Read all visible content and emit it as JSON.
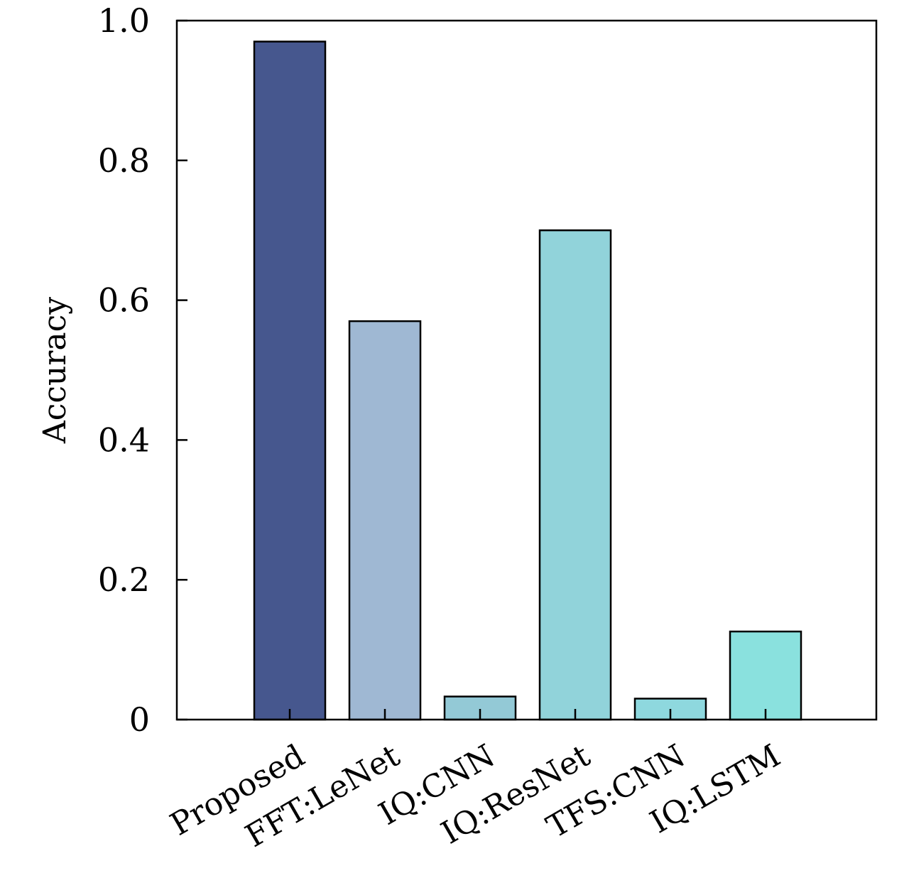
{
  "chart_data": {
    "type": "bar",
    "title": "",
    "xlabel": "",
    "ylabel": "Accuracy",
    "ylim": [
      0,
      1.0
    ],
    "yticks": [
      0,
      0.2,
      0.4,
      0.6,
      0.8,
      1.0
    ],
    "ytick_labels": [
      "0",
      "0.2",
      "0.4",
      "0.6",
      "0.8",
      "1.0"
    ],
    "categories": [
      "Proposed",
      "FFT:LeNet",
      "IQ:CNN",
      "IQ:ResNet",
      "TFS:CNN",
      "IQ:LSTM"
    ],
    "values": [
      0.97,
      0.57,
      0.033,
      0.7,
      0.03,
      0.126
    ],
    "colors": [
      "#46578e",
      "#9fb8d3",
      "#93c9d6",
      "#91d3da",
      "#8ed8de",
      "#8ae1de"
    ],
    "grid": false,
    "legend": "none"
  }
}
